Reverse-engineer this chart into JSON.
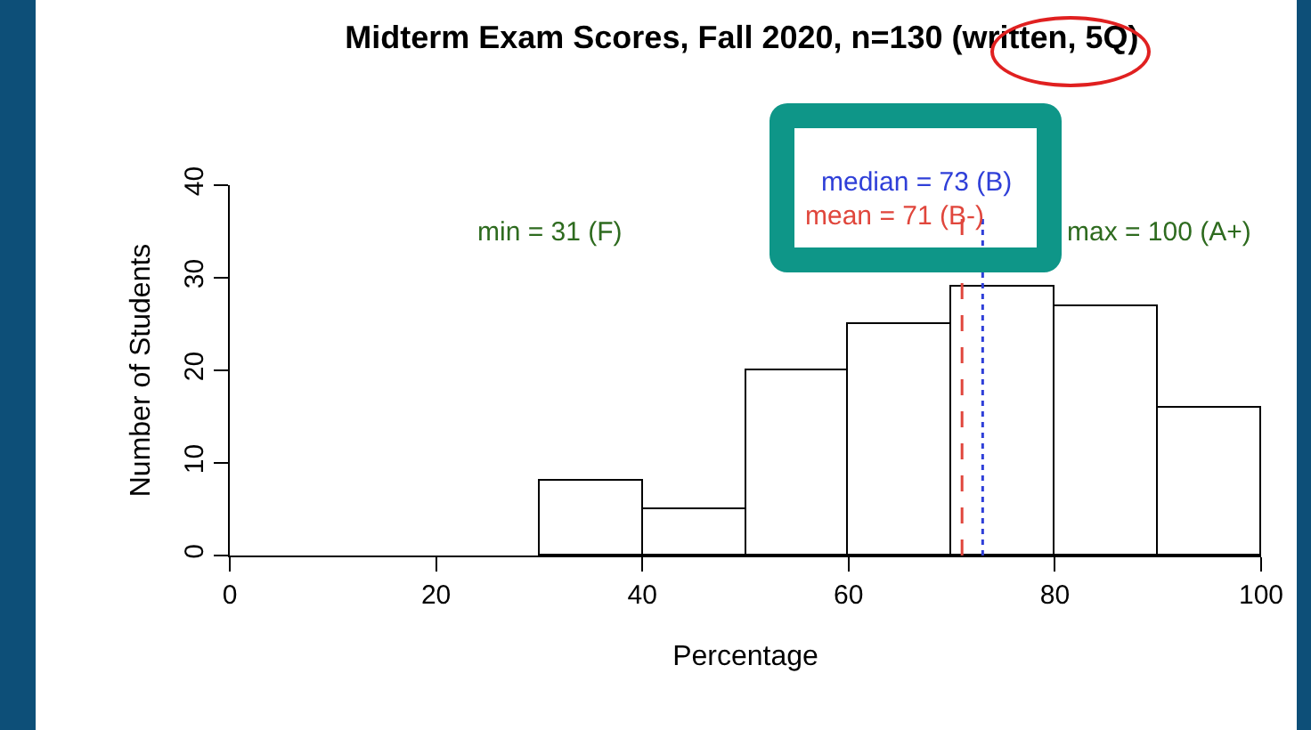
{
  "chart_data": {
    "type": "histogram",
    "title": "Midterm Exam Scores, Fall 2020, n=130 (written, 5Q)",
    "xlabel": "Percentage",
    "ylabel": "Number of Students",
    "bins": [
      30,
      40,
      50,
      60,
      70,
      80,
      90,
      100
    ],
    "values": [
      8,
      5,
      20,
      25,
      29,
      27,
      16
    ],
    "color": "#ffffff",
    "xlim": [
      0,
      100
    ],
    "xticks": [
      0,
      20,
      40,
      60,
      80,
      100
    ],
    "ylim": [
      0,
      40
    ],
    "yticks": [
      0,
      10,
      20,
      30,
      40
    ],
    "ref_lines": [
      {
        "axis": "x",
        "value": 73,
        "label": "median = 73 (B)",
        "color": "#2f3fd8",
        "line_style": "dotted"
      },
      {
        "axis": "x",
        "value": 71,
        "label": "mean = 71 (B-)",
        "color": "#e0463c",
        "line_style": "dashed"
      }
    ],
    "annotations": [
      "min = 31 (F)",
      "max = 100 (A+)"
    ],
    "grid": false
  }
}
